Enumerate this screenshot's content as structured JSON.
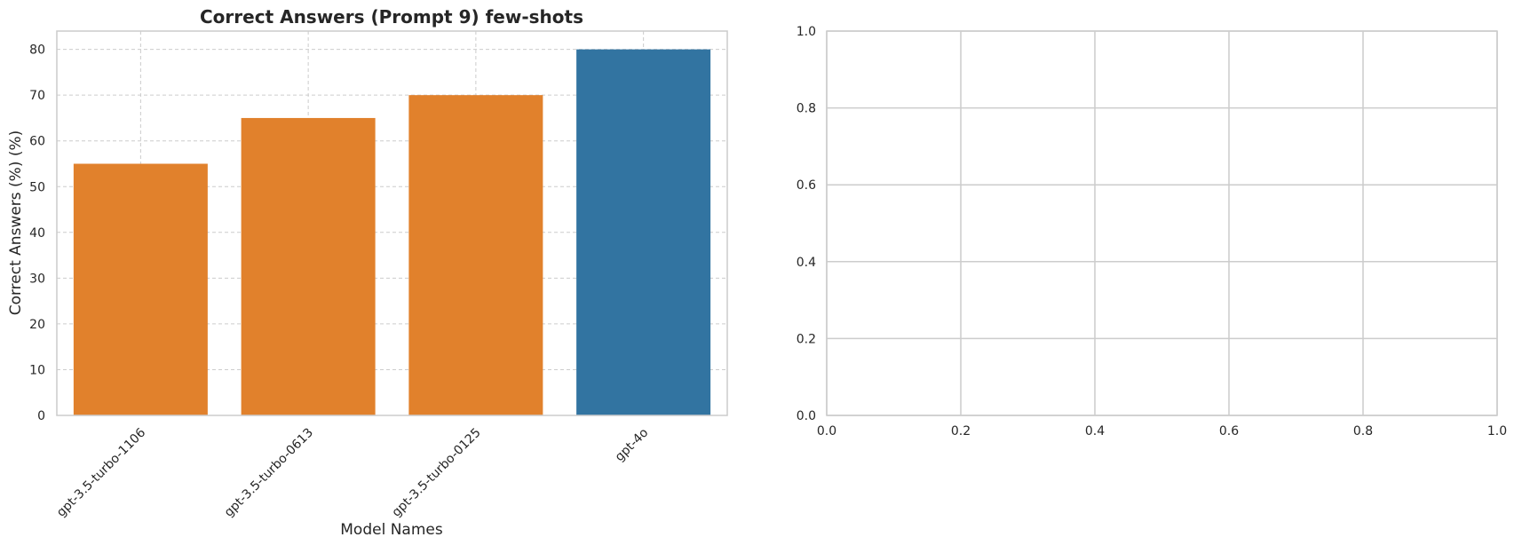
{
  "chart_data": [
    {
      "type": "bar",
      "title": "Correct Answers (Prompt 9) few-shots",
      "xlabel": "Model Names",
      "ylabel": "Correct Answers (%) (%)",
      "categories": [
        "gpt-3.5-turbo-1106",
        "gpt-3.5-turbo-0613",
        "gpt-3.5-turbo-0125",
        "gpt-4o"
      ],
      "values": [
        55,
        65,
        70,
        80
      ],
      "bar_colors": [
        "#e1812c",
        "#e1812c",
        "#e1812c",
        "#3274a1"
      ],
      "ylim": [
        0,
        84
      ],
      "yticks": [
        0,
        10,
        20,
        30,
        40,
        50,
        60,
        70,
        80
      ],
      "grid": true,
      "grid_style": "dashed"
    },
    {
      "type": "scatter",
      "title": "",
      "xlabel": "",
      "ylabel": "",
      "xlim": [
        0,
        1
      ],
      "ylim": [
        0,
        1
      ],
      "xticks": [
        0.0,
        0.2,
        0.4,
        0.6,
        0.8,
        1.0
      ],
      "yticks": [
        0.0,
        0.2,
        0.4,
        0.6,
        0.8,
        1.0
      ],
      "xtick_labels": [
        "0.0",
        "0.2",
        "0.4",
        "0.6",
        "0.8",
        "1.0"
      ],
      "ytick_labels": [
        "0.0",
        "0.2",
        "0.4",
        "0.6",
        "0.8",
        "1.0"
      ],
      "grid": true,
      "grid_style": "solid",
      "series": []
    }
  ],
  "colors": {
    "axis_frame": "#cccccc",
    "grid": "#cccccc",
    "text": "#262626"
  }
}
